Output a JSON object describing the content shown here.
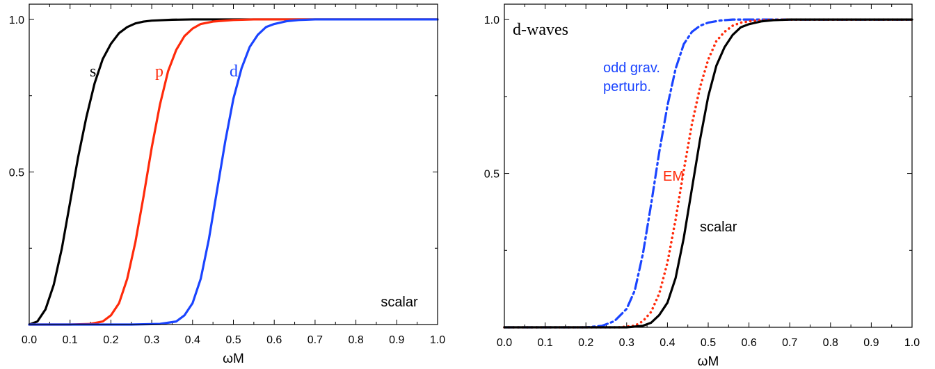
{
  "chart_data": [
    {
      "type": "line",
      "xlabel": "ωM",
      "ylabel": "",
      "xlim": [
        0,
        1
      ],
      "ylim": [
        0,
        1.05
      ],
      "xticks": [
        "0.0",
        "0.1",
        "0.2",
        "0.3",
        "0.4",
        "0.5",
        "0.6",
        "0.7",
        "0.8",
        "0.9",
        "1.0"
      ],
      "yticks": [
        "0.5",
        "1.0"
      ],
      "annotation": "scalar",
      "series": [
        {
          "name": "s",
          "color": "#000000",
          "style": "solid",
          "x": [
            0.0,
            0.02,
            0.04,
            0.06,
            0.08,
            0.1,
            0.12,
            0.14,
            0.16,
            0.18,
            0.2,
            0.22,
            0.24,
            0.26,
            0.28,
            0.3,
            0.35,
            0.4,
            0.5,
            0.6,
            1.0
          ],
          "y": [
            0.0,
            0.01,
            0.05,
            0.13,
            0.25,
            0.4,
            0.55,
            0.68,
            0.79,
            0.87,
            0.92,
            0.955,
            0.975,
            0.987,
            0.993,
            0.996,
            0.999,
            1.0,
            1.0,
            1.0,
            1.0
          ]
        },
        {
          "name": "p",
          "color": "#ff2a0a",
          "style": "solid",
          "x": [
            0.0,
            0.1,
            0.15,
            0.18,
            0.2,
            0.22,
            0.24,
            0.26,
            0.28,
            0.3,
            0.32,
            0.34,
            0.36,
            0.38,
            0.4,
            0.42,
            0.45,
            0.5,
            0.55,
            0.6,
            0.7,
            1.0
          ],
          "y": [
            0.0,
            0.0,
            0.002,
            0.01,
            0.03,
            0.07,
            0.15,
            0.27,
            0.42,
            0.58,
            0.72,
            0.83,
            0.9,
            0.945,
            0.97,
            0.985,
            0.993,
            0.998,
            1.0,
            1.0,
            1.0,
            1.0
          ]
        },
        {
          "name": "d",
          "color": "#1a44ff",
          "style": "solid",
          "x": [
            0.0,
            0.25,
            0.32,
            0.36,
            0.38,
            0.4,
            0.42,
            0.44,
            0.46,
            0.48,
            0.5,
            0.52,
            0.54,
            0.56,
            0.58,
            0.6,
            0.63,
            0.66,
            0.7,
            0.8,
            1.0
          ],
          "y": [
            0.0,
            0.0,
            0.002,
            0.01,
            0.03,
            0.07,
            0.15,
            0.28,
            0.44,
            0.6,
            0.74,
            0.84,
            0.91,
            0.95,
            0.975,
            0.985,
            0.994,
            0.998,
            1.0,
            1.0,
            1.0
          ]
        }
      ]
    },
    {
      "type": "line",
      "xlabel": "ωM",
      "ylabel": "",
      "xlim": [
        0,
        1
      ],
      "ylim": [
        0,
        1.05
      ],
      "xticks": [
        "0.0",
        "0.1",
        "0.2",
        "0.3",
        "0.4",
        "0.5",
        "0.6",
        "0.7",
        "0.8",
        "0.9",
        "1.0"
      ],
      "yticks": [
        "0.5",
        "1.0"
      ],
      "title": "d-waves",
      "series": [
        {
          "name": "odd grav. perturb.",
          "color": "#1a44ff",
          "style": "dashdot",
          "x": [
            0.0,
            0.2,
            0.24,
            0.27,
            0.3,
            0.32,
            0.34,
            0.36,
            0.38,
            0.4,
            0.42,
            0.44,
            0.46,
            0.48,
            0.5,
            0.53,
            0.56,
            0.6,
            0.7,
            1.0
          ],
          "y": [
            0.0,
            0.0,
            0.005,
            0.02,
            0.06,
            0.12,
            0.24,
            0.4,
            0.57,
            0.72,
            0.84,
            0.92,
            0.96,
            0.98,
            0.99,
            0.997,
            1.0,
            1.0,
            1.0,
            1.0
          ]
        },
        {
          "name": "EM",
          "color": "#ff2a0a",
          "style": "dotted",
          "x": [
            0.0,
            0.28,
            0.32,
            0.34,
            0.36,
            0.38,
            0.4,
            0.42,
            0.44,
            0.46,
            0.48,
            0.5,
            0.52,
            0.54,
            0.56,
            0.58,
            0.61,
            0.65,
            0.7,
            1.0
          ],
          "y": [
            0.0,
            0.0,
            0.005,
            0.02,
            0.05,
            0.11,
            0.21,
            0.35,
            0.51,
            0.66,
            0.78,
            0.87,
            0.93,
            0.96,
            0.98,
            0.99,
            0.996,
            0.999,
            1.0,
            1.0
          ]
        },
        {
          "name": "scalar",
          "color": "#000000",
          "style": "solid",
          "x": [
            0.0,
            0.3,
            0.34,
            0.36,
            0.38,
            0.4,
            0.42,
            0.44,
            0.46,
            0.48,
            0.5,
            0.52,
            0.54,
            0.56,
            0.58,
            0.6,
            0.63,
            0.66,
            0.7,
            1.0
          ],
          "y": [
            0.0,
            0.0,
            0.005,
            0.015,
            0.04,
            0.08,
            0.16,
            0.29,
            0.45,
            0.61,
            0.75,
            0.85,
            0.91,
            0.95,
            0.975,
            0.985,
            0.994,
            0.998,
            1.0,
            1.0
          ]
        }
      ]
    }
  ]
}
